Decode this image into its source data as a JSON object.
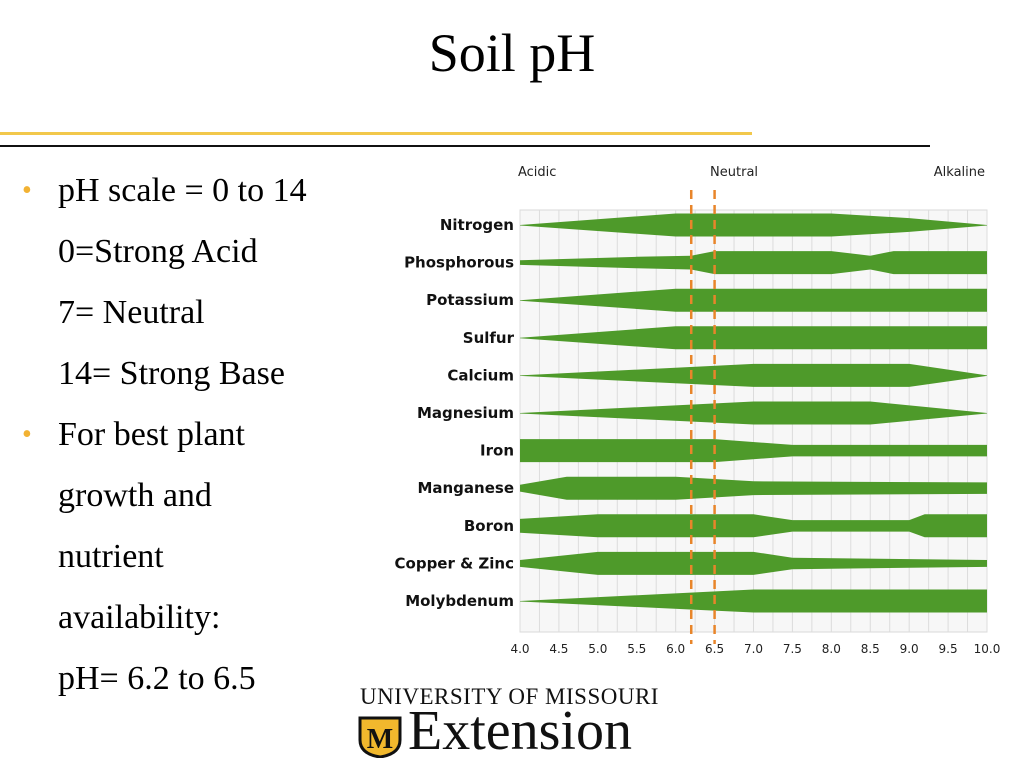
{
  "slide": {
    "title": "Soil pH",
    "bullet1": [
      "pH scale = 0 to 14",
      "0=Strong Acid",
      "7= Neutral",
      "14= Strong Base"
    ],
    "bullet2": [
      "For best plant",
      "growth and",
      "nutrient",
      "availability:",
      "pH= 6.2 to 6.5"
    ]
  },
  "logo": {
    "top": "UNIVERSITY OF MISSOURI",
    "word": "Extension",
    "mark": "M"
  },
  "colors": {
    "band": "#4e9a2a",
    "dashed": "#e8852a",
    "bullet": "#f2b233",
    "gold_rule": "#f2c84b"
  },
  "chart_data": {
    "type": "area",
    "zone_labels": [
      "Acidic",
      "Neutral",
      "Alkaline"
    ],
    "x_ticks": [
      "4.0",
      "4.5",
      "5.0",
      "5.5",
      "6.0",
      "6.5",
      "7.0",
      "7.5",
      "8.0",
      "8.5",
      "9.0",
      "9.5",
      "10.0"
    ],
    "xlim": [
      4.0,
      10.0
    ],
    "grid": true,
    "reference_lines": [
      6.2,
      6.5
    ],
    "value_note": "band thickness as relative availability 0-1 at each pH",
    "series": [
      {
        "name": "Nitrogen",
        "points": [
          [
            4.0,
            0.0
          ],
          [
            6.0,
            1.0
          ],
          [
            8.0,
            1.0
          ],
          [
            9.0,
            0.6
          ],
          [
            10.0,
            0.0
          ]
        ]
      },
      {
        "name": "Phosphorous",
        "points": [
          [
            4.0,
            0.2
          ],
          [
            5.5,
            0.5
          ],
          [
            6.2,
            0.6
          ],
          [
            6.5,
            1.0
          ],
          [
            8.0,
            1.0
          ],
          [
            8.5,
            0.6
          ],
          [
            8.8,
            1.0
          ],
          [
            10.0,
            1.0
          ]
        ]
      },
      {
        "name": "Potassium",
        "points": [
          [
            4.0,
            0.0
          ],
          [
            6.0,
            1.0
          ],
          [
            10.0,
            1.0
          ]
        ]
      },
      {
        "name": "Sulfur",
        "points": [
          [
            4.0,
            0.0
          ],
          [
            6.0,
            1.0
          ],
          [
            10.0,
            1.0
          ]
        ]
      },
      {
        "name": "Calcium",
        "points": [
          [
            4.0,
            0.0
          ],
          [
            7.0,
            1.0
          ],
          [
            9.0,
            1.0
          ],
          [
            10.0,
            0.0
          ]
        ]
      },
      {
        "name": "Magnesium",
        "points": [
          [
            4.0,
            0.0
          ],
          [
            7.0,
            1.0
          ],
          [
            8.5,
            1.0
          ],
          [
            10.0,
            0.0
          ]
        ]
      },
      {
        "name": "Iron",
        "points": [
          [
            4.0,
            1.0
          ],
          [
            6.5,
            1.0
          ],
          [
            7.5,
            0.5
          ],
          [
            10.0,
            0.5
          ]
        ]
      },
      {
        "name": "Manganese",
        "points": [
          [
            4.0,
            0.3
          ],
          [
            4.6,
            1.0
          ],
          [
            6.0,
            1.0
          ],
          [
            7.0,
            0.6
          ],
          [
            10.0,
            0.5
          ]
        ]
      },
      {
        "name": "Boron",
        "points": [
          [
            4.0,
            0.6
          ],
          [
            5.0,
            1.0
          ],
          [
            7.0,
            1.0
          ],
          [
            7.5,
            0.5
          ],
          [
            9.0,
            0.5
          ],
          [
            9.2,
            1.0
          ],
          [
            10.0,
            1.0
          ]
        ]
      },
      {
        "name": "Copper & Zinc",
        "points": [
          [
            4.0,
            0.3
          ],
          [
            5.0,
            1.0
          ],
          [
            7.0,
            1.0
          ],
          [
            7.5,
            0.5
          ],
          [
            10.0,
            0.3
          ]
        ]
      },
      {
        "name": "Molybdenum",
        "points": [
          [
            4.0,
            0.0
          ],
          [
            7.0,
            1.0
          ],
          [
            10.0,
            1.0
          ]
        ]
      }
    ]
  }
}
